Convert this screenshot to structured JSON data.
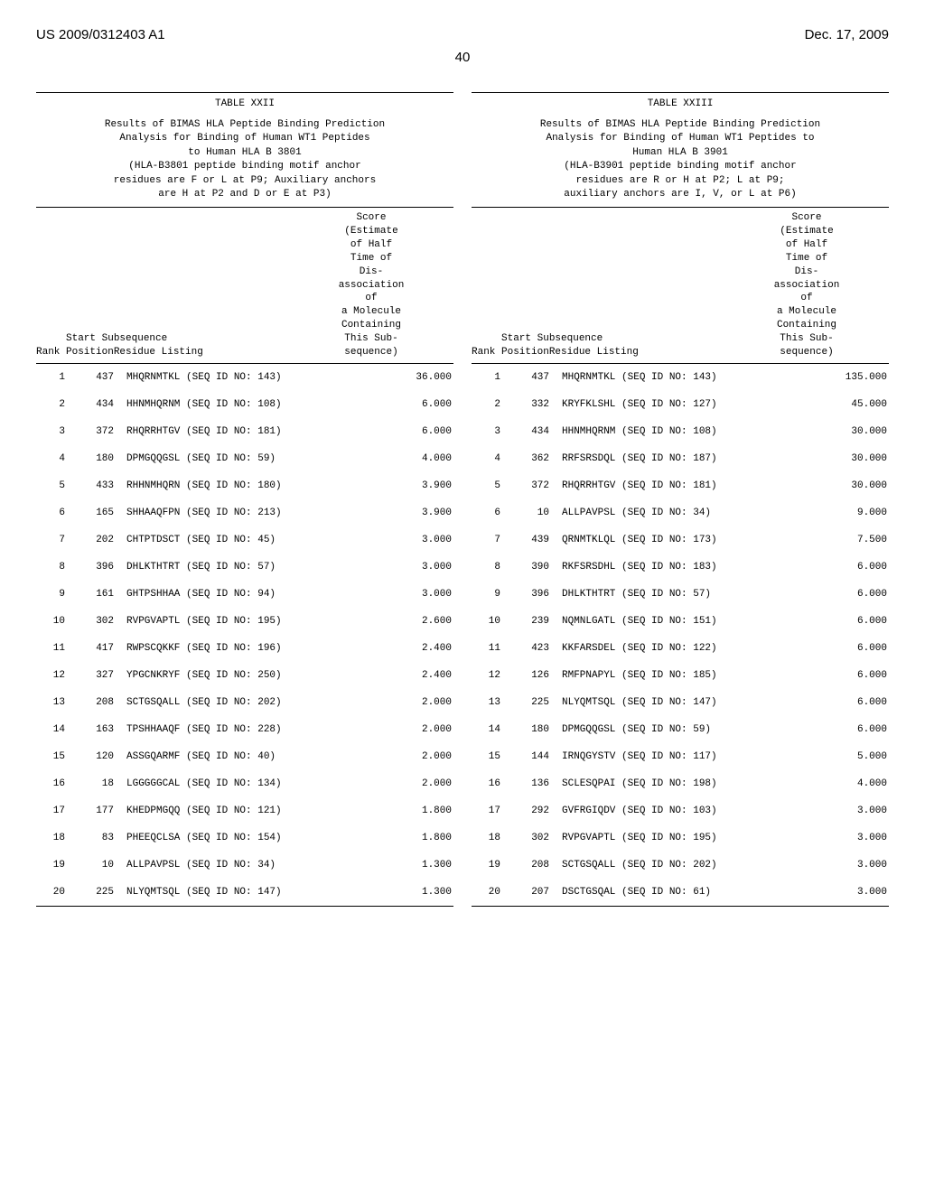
{
  "header": {
    "left": "US 2009/0312403 A1",
    "right": "Dec. 17, 2009",
    "page": "40"
  },
  "tables": [
    {
      "label": "TABLE XXII",
      "caption": [
        "Results of BIMAS HLA Peptide Binding Prediction",
        "Analysis for Binding of Human WT1 Peptides",
        "to Human HLA B 3801",
        "(HLA-B3801 peptide binding motif anchor",
        "residues are F or L at P9; Auxiliary anchors",
        "are H at P2 and D or E at P3)"
      ],
      "head_left_line1": "Start  Subsequence",
      "head_left_line2": "Rank PositionResidue Listing",
      "head_right": [
        "Score",
        "(Estimate",
        "of Half",
        "Time of",
        "Dis-",
        "association",
        "of",
        "a Molecule",
        "Containing",
        "This Sub-",
        "sequence)"
      ],
      "rows": [
        {
          "rank": "1",
          "pos": "437",
          "seq": "MHQRNMTKL (SEQ ID NO: 143)",
          "score": "36.000"
        },
        {
          "rank": "2",
          "pos": "434",
          "seq": "HHNMHQRNM (SEQ ID NO: 108)",
          "score": "6.000"
        },
        {
          "rank": "3",
          "pos": "372",
          "seq": "RHQRRHTGV (SEQ ID NO: 181)",
          "score": "6.000"
        },
        {
          "rank": "4",
          "pos": "180",
          "seq": "DPMGQQGSL (SEQ ID NO: 59)",
          "score": "4.000"
        },
        {
          "rank": "5",
          "pos": "433",
          "seq": "RHHNMHQRN (SEQ ID NO: 180)",
          "score": "3.900"
        },
        {
          "rank": "6",
          "pos": "165",
          "seq": "SHHAAQFPN (SEQ ID NO: 213)",
          "score": "3.900"
        },
        {
          "rank": "7",
          "pos": "202",
          "seq": "CHTPTDSCT (SEQ ID NO: 45)",
          "score": "3.000"
        },
        {
          "rank": "8",
          "pos": "396",
          "seq": "DHLKTHTRT (SEQ ID NO: 57)",
          "score": "3.000"
        },
        {
          "rank": "9",
          "pos": "161",
          "seq": "GHTPSHHAA (SEQ ID NO: 94)",
          "score": "3.000"
        },
        {
          "rank": "10",
          "pos": "302",
          "seq": "RVPGVAPTL (SEQ ID NO: 195)",
          "score": "2.600"
        },
        {
          "rank": "11",
          "pos": "417",
          "seq": "RWPSCQKKF (SEQ ID NO: 196)",
          "score": "2.400"
        },
        {
          "rank": "12",
          "pos": "327",
          "seq": "YPGCNKRYF (SEQ ID NO: 250)",
          "score": "2.400"
        },
        {
          "rank": "13",
          "pos": "208",
          "seq": "SCTGSQALL (SEQ ID NO: 202)",
          "score": "2.000"
        },
        {
          "rank": "14",
          "pos": "163",
          "seq": "TPSHHAAQF (SEQ ID NO: 228)",
          "score": "2.000"
        },
        {
          "rank": "15",
          "pos": "120",
          "seq": "ASSGQARMF (SEQ ID NO: 40)",
          "score": "2.000"
        },
        {
          "rank": "16",
          "pos": "18",
          "seq": "LGGGGGCAL (SEQ ID NO: 134)",
          "score": "2.000"
        },
        {
          "rank": "17",
          "pos": "177",
          "seq": "KHEDPMGQQ (SEQ ID NO: 121)",
          "score": "1.800"
        },
        {
          "rank": "18",
          "pos": "83",
          "seq": "PHEEQCLSA (SEQ ID NO: 154)",
          "score": "1.800"
        },
        {
          "rank": "19",
          "pos": "10",
          "seq": "ALLPAVPSL (SEQ ID NO: 34)",
          "score": "1.300"
        },
        {
          "rank": "20",
          "pos": "225",
          "seq": "NLYQMTSQL (SEQ ID NO: 147)",
          "score": "1.300"
        }
      ]
    },
    {
      "label": "TABLE XXIII",
      "caption": [
        "Results of BIMAS HLA Peptide Binding Prediction",
        "Analysis for Binding of Human WT1 Peptides to",
        "Human HLA B 3901",
        "(HLA-B3901 peptide binding motif anchor",
        "residues are R or H at P2; L at P9;",
        "auxiliary anchors are I, V, or L at P6)"
      ],
      "head_left_line1": "Start  Subsequence",
      "head_left_line2": "Rank PositionResidue Listing",
      "head_right": [
        "Score",
        "(Estimate",
        "of Half",
        "Time of",
        "Dis-",
        "association",
        "of",
        "a Molecule",
        "Containing",
        "This Sub-",
        "sequence)"
      ],
      "rows": [
        {
          "rank": "1",
          "pos": "437",
          "seq": "MHQRNMTKL (SEQ ID NO: 143)",
          "score": "135.000"
        },
        {
          "rank": "2",
          "pos": "332",
          "seq": "KRYFKLSHL (SEQ ID NO: 127)",
          "score": "45.000"
        },
        {
          "rank": "3",
          "pos": "434",
          "seq": "HHNMHQRNM (SEQ ID NO: 108)",
          "score": "30.000"
        },
        {
          "rank": "4",
          "pos": "362",
          "seq": "RRFSRSDQL (SEQ ID NO: 187)",
          "score": "30.000"
        },
        {
          "rank": "5",
          "pos": "372",
          "seq": "RHQRRHTGV (SEQ ID NO: 181)",
          "score": "30.000"
        },
        {
          "rank": "6",
          "pos": "10",
          "seq": "ALLPAVPSL (SEQ ID NO: 34)",
          "score": "9.000"
        },
        {
          "rank": "7",
          "pos": "439",
          "seq": "QRNMTKLQL (SEQ ID NO: 173)",
          "score": "7.500"
        },
        {
          "rank": "8",
          "pos": "390",
          "seq": "RKFSRSDHL (SEQ ID NO: 183)",
          "score": "6.000"
        },
        {
          "rank": "9",
          "pos": "396",
          "seq": "DHLKTHTRT (SEQ ID NO: 57)",
          "score": "6.000"
        },
        {
          "rank": "10",
          "pos": "239",
          "seq": "NQMNLGATL (SEQ ID NO: 151)",
          "score": "6.000"
        },
        {
          "rank": "11",
          "pos": "423",
          "seq": "KKFARSDEL (SEQ ID NO: 122)",
          "score": "6.000"
        },
        {
          "rank": "12",
          "pos": "126",
          "seq": "RMFPNAPYL (SEQ ID NO: 185)",
          "score": "6.000"
        },
        {
          "rank": "13",
          "pos": "225",
          "seq": "NLYQMTSQL (SEQ ID NO: 147)",
          "score": "6.000"
        },
        {
          "rank": "14",
          "pos": "180",
          "seq": "DPMGQQGSL (SEQ ID NO: 59)",
          "score": "6.000"
        },
        {
          "rank": "15",
          "pos": "144",
          "seq": "IRNQGYSTV (SEQ ID NO: 117)",
          "score": "5.000"
        },
        {
          "rank": "16",
          "pos": "136",
          "seq": "SCLESQPAI (SEQ ID NO: 198)",
          "score": "4.000"
        },
        {
          "rank": "17",
          "pos": "292",
          "seq": "GVFRGIQDV (SEQ ID NO: 103)",
          "score": "3.000"
        },
        {
          "rank": "18",
          "pos": "302",
          "seq": "RVPGVAPTL (SEQ ID NO: 195)",
          "score": "3.000"
        },
        {
          "rank": "19",
          "pos": "208",
          "seq": "SCTGSQALL (SEQ ID NO: 202)",
          "score": "3.000"
        },
        {
          "rank": "20",
          "pos": "207",
          "seq": "DSCTGSQAL (SEQ ID NO: 61)",
          "score": "3.000"
        }
      ]
    }
  ]
}
